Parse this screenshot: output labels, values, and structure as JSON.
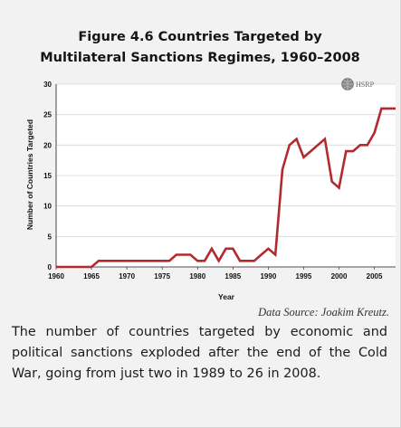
{
  "figure_title_line1": "Figure 4.6 Countries Targeted by",
  "figure_title_line2": "Multilateral Sanctions Regimes, 1960–2008",
  "logo_text": "HSRP",
  "source_text": "Data Source: Joakim Kreutz.",
  "caption": "The number of countries targeted by economic and political sanctions exploded after the end of the Cold War, going from just two in 1989 to 26 in 2008.",
  "colors": {
    "line": "#b32a2e",
    "plot_bg": "#ffffff",
    "panel_bg": "#f2f2f2"
  },
  "chart_data": {
    "type": "line",
    "title": "Figure 4.6 Countries Targeted by Multilateral Sanctions Regimes, 1960–2008",
    "xlabel": "Year",
    "ylabel": "Number of Countries Targeted",
    "xlim": [
      1960,
      2008
    ],
    "ylim": [
      0,
      30
    ],
    "xticks": [
      1960,
      1965,
      1970,
      1975,
      1980,
      1985,
      1990,
      1995,
      2000,
      2005
    ],
    "yticks": [
      0,
      5,
      10,
      15,
      20,
      25,
      30
    ],
    "grid": "horizontal",
    "series": [
      {
        "x": [
          1960,
          1961,
          1962,
          1963,
          1964,
          1965,
          1966,
          1967,
          1968,
          1969,
          1970,
          1971,
          1972,
          1973,
          1974,
          1975,
          1976,
          1977,
          1978,
          1979,
          1980,
          1981,
          1982,
          1983,
          1984,
          1985,
          1986,
          1987,
          1988,
          1989,
          1990,
          1991,
          1992,
          1993,
          1994,
          1995,
          1996,
          1997,
          1998,
          1999,
          2000,
          2001,
          2002,
          2003,
          2004,
          2005,
          2006,
          2007,
          2008
        ],
        "y": [
          0,
          0,
          0,
          0,
          0,
          0,
          1,
          1,
          1,
          1,
          1,
          1,
          1,
          1,
          1,
          1,
          1,
          2,
          2,
          2,
          1,
          1,
          3,
          1,
          3,
          3,
          1,
          1,
          1,
          2,
          3,
          2,
          16,
          20,
          21,
          18,
          19,
          20,
          21,
          14,
          13,
          19,
          19,
          20,
          20,
          22,
          26,
          26,
          26
        ]
      }
    ]
  }
}
